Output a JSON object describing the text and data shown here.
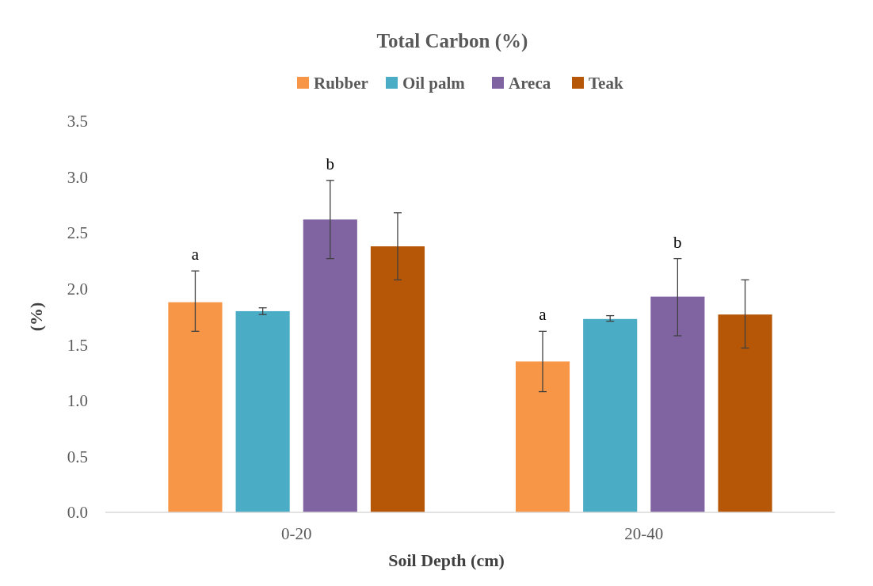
{
  "chart_data": {
    "type": "bar",
    "title": "Total Carbon (%)",
    "xlabel": "Soil Depth (cm)",
    "ylabel": "(%)",
    "categories": [
      "0-20",
      "20-40"
    ],
    "series": [
      {
        "name": "Rubber",
        "color": "#f79646",
        "values": [
          1.88,
          1.35
        ],
        "errors": [
          [
            1.62,
            2.16
          ],
          [
            1.08,
            1.62
          ]
        ],
        "value_labels": [
          "a",
          "a"
        ]
      },
      {
        "name": "Oil palm",
        "color": "#4bacc6",
        "values": [
          1.8,
          1.73
        ],
        "errors": [
          [
            1.77,
            1.83
          ],
          [
            1.71,
            1.76
          ]
        ]
      },
      {
        "name": "Areca",
        "color": "#8064a2",
        "values": [
          2.62,
          1.93
        ],
        "errors": [
          [
            2.27,
            2.97
          ],
          [
            1.58,
            2.27
          ]
        ],
        "value_labels": [
          "b",
          "b"
        ]
      },
      {
        "name": "Teak",
        "color": "#b65708",
        "values": [
          2.38,
          1.77
        ],
        "errors": [
          [
            2.08,
            2.68
          ],
          [
            1.47,
            2.08
          ]
        ]
      }
    ],
    "ylim": [
      0,
      3.5
    ],
    "yticks": [
      {
        "value": 0,
        "label": "0.0"
      },
      {
        "value": 0.5,
        "label": "0.5"
      },
      {
        "value": 1,
        "label": "1.0"
      },
      {
        "value": 1.5,
        "label": "1.5"
      },
      {
        "value": 2,
        "label": "2.0"
      },
      {
        "value": 2.5,
        "label": "2.5"
      },
      {
        "value": 3,
        "label": "3.0"
      },
      {
        "value": 3.5,
        "label": "3.5"
      }
    ],
    "grid": false,
    "legend": "top"
  }
}
